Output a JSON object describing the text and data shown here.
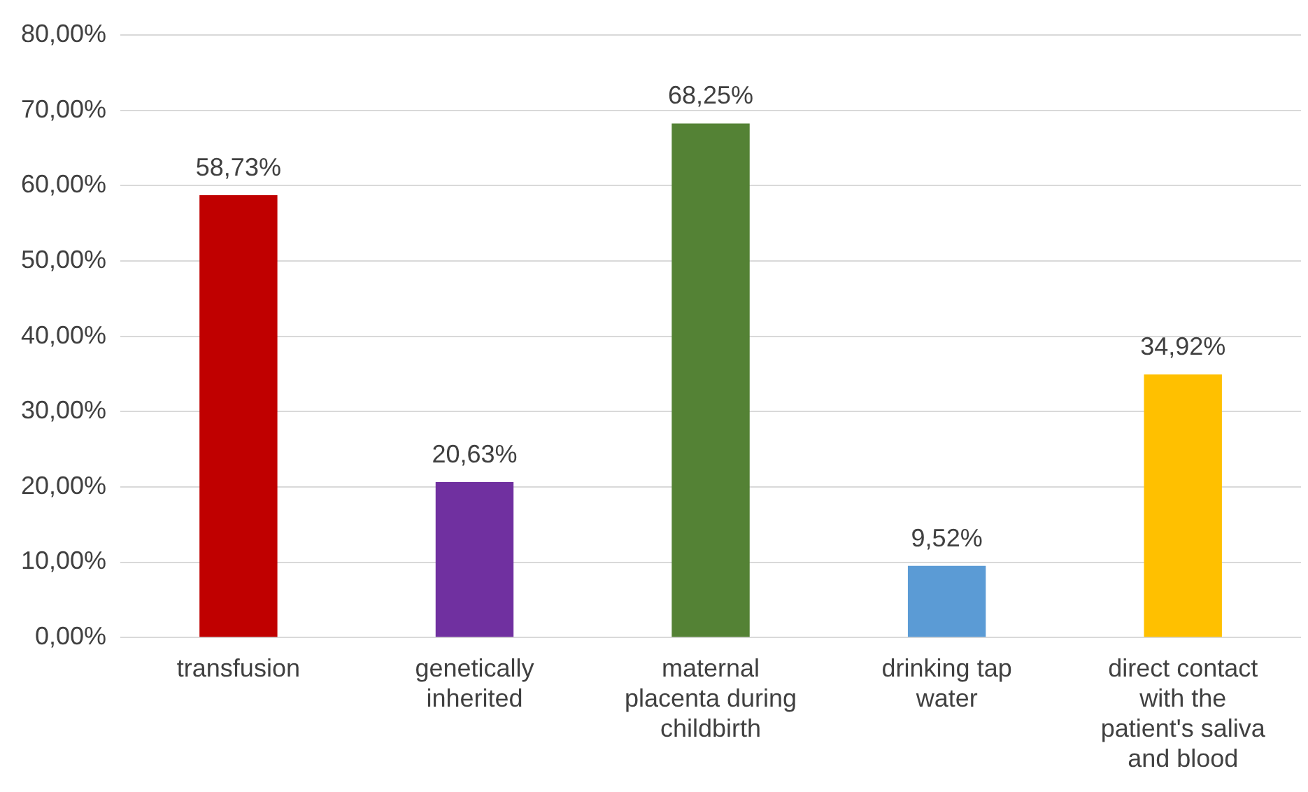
{
  "chart_data": {
    "type": "bar",
    "categories": [
      "transfusion",
      "genetically inherited",
      "maternal placenta during childbirth",
      "drinking tap water",
      "direct contact with the patient's saliva and blood"
    ],
    "values": [
      58.73,
      20.63,
      68.25,
      9.52,
      34.92
    ],
    "value_labels": [
      "58,73%",
      "20,63%",
      "68,25%",
      "9,52%",
      "34,92%"
    ],
    "colors": [
      "#c00000",
      "#7030a0",
      "#548235",
      "#5b9bd5",
      "#ffc000"
    ],
    "ylim": [
      0,
      80
    ],
    "yticks": [
      {
        "value": 0,
        "label": "0,00%"
      },
      {
        "value": 10,
        "label": "10,00%"
      },
      {
        "value": 20,
        "label": "20,00%"
      },
      {
        "value": 30,
        "label": "30,00%"
      },
      {
        "value": 40,
        "label": "40,00%"
      },
      {
        "value": 50,
        "label": "50,00%"
      },
      {
        "value": 60,
        "label": "60,00%"
      },
      {
        "value": 70,
        "label": "70,00%"
      },
      {
        "value": 80,
        "label": "80,00%"
      }
    ],
    "grid": "y"
  }
}
